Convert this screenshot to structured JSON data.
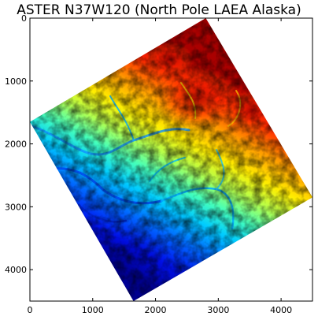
{
  "chart_data": {
    "type": "heatmap",
    "title": "ASTER N37W120 (North Pole LAEA Alaska)",
    "xlabel": "",
    "ylabel": "",
    "xlim": [
      0,
      4500
    ],
    "ylim": [
      4500,
      0
    ],
    "x_ticks": [
      0,
      1000,
      2000,
      3000,
      4000
    ],
    "y_ticks": [
      0,
      1000,
      2000,
      3000,
      4000
    ],
    "x_tick_labels": [
      "0",
      "1000",
      "2000",
      "3000",
      "4000"
    ],
    "y_tick_labels": [
      "0",
      "1000",
      "2000",
      "3000",
      "4000"
    ],
    "colormap": "jet",
    "grid": false,
    "background": "#ffffff",
    "data_footprint_corners": [
      [
        2800,
        0
      ],
      [
        4500,
        2850
      ],
      [
        1650,
        4500
      ],
      [
        0,
        1650
      ]
    ],
    "elevation_pattern": "high (red) along north-east edge, low (blue) toward south-west, with dendritic valley network"
  }
}
